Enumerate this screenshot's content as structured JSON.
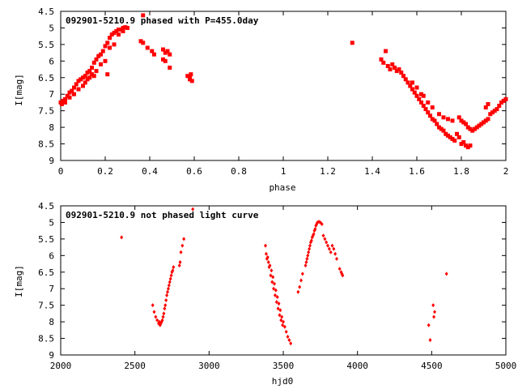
{
  "chart_data": [
    {
      "type": "scatter",
      "title": "092901-5210.9 phased with P=455.0day",
      "xlabel": "phase",
      "ylabel": "I[mag]",
      "xlim": [
        0,
        2
      ],
      "ylim": [
        9,
        4.5
      ],
      "y_inverted": true,
      "xticks": [
        "0",
        "0.2",
        "0.4",
        "0.6",
        "0.8",
        "1",
        "1.2",
        "1.4",
        "1.6",
        "1.8",
        "2"
      ],
      "yticks": [
        "4.5",
        "5",
        "5.5",
        "6",
        "6.5",
        "7",
        "7.5",
        "8",
        "8.5",
        "9"
      ],
      "marker_color": "#ff0000",
      "marker": "filled-square",
      "series": [
        {
          "points": [
            [
              0.0,
              7.25
            ],
            [
              0.01,
              7.2
            ],
            [
              0.02,
              7.15
            ],
            [
              0.03,
              7.05
            ],
            [
              0.04,
              6.95
            ],
            [
              0.05,
              6.9
            ],
            [
              0.06,
              6.8
            ],
            [
              0.07,
              6.7
            ],
            [
              0.08,
              6.6
            ],
            [
              0.09,
              6.55
            ],
            [
              0.1,
              6.5
            ],
            [
              0.11,
              6.45
            ],
            [
              0.12,
              6.35
            ],
            [
              0.13,
              6.3
            ],
            [
              0.14,
              6.2
            ],
            [
              0.15,
              6.05
            ],
            [
              0.16,
              5.95
            ],
            [
              0.17,
              5.85
            ],
            [
              0.18,
              5.8
            ],
            [
              0.19,
              5.7
            ],
            [
              0.2,
              5.55
            ],
            [
              0.21,
              5.45
            ],
            [
              0.22,
              5.3
            ],
            [
              0.23,
              5.2
            ],
            [
              0.24,
              5.15
            ],
            [
              0.25,
              5.1
            ],
            [
              0.26,
              5.05
            ],
            [
              0.27,
              5.05
            ],
            [
              0.28,
              5.0
            ],
            [
              0.29,
              4.98
            ],
            [
              0.3,
              5.0
            ],
            [
              0.005,
              7.3
            ],
            [
              0.02,
              7.25
            ],
            [
              0.04,
              7.1
            ],
            [
              0.06,
              7.0
            ],
            [
              0.08,
              6.85
            ],
            [
              0.1,
              6.75
            ],
            [
              0.12,
              6.55
            ],
            [
              0.14,
              6.4
            ],
            [
              0.16,
              6.3
            ],
            [
              0.18,
              6.1
            ],
            [
              0.2,
              6.0
            ],
            [
              0.22,
              5.6
            ],
            [
              0.24,
              5.5
            ],
            [
              0.26,
              5.2
            ],
            [
              0.28,
              5.1
            ],
            [
              0.11,
              6.65
            ],
            [
              0.13,
              6.5
            ],
            [
              0.15,
              6.45
            ],
            [
              0.21,
              6.4
            ],
            [
              0.37,
              4.62
            ],
            [
              0.36,
              5.4
            ],
            [
              0.37,
              5.45
            ],
            [
              0.39,
              5.6
            ],
            [
              0.41,
              5.7
            ],
            [
              0.42,
              5.8
            ],
            [
              0.46,
              5.95
            ],
            [
              0.47,
              6.0
            ],
            [
              0.46,
              5.65
            ],
            [
              0.47,
              5.75
            ],
            [
              0.48,
              5.7
            ],
            [
              0.49,
              5.8
            ],
            [
              0.49,
              6.2
            ],
            [
              0.57,
              6.45
            ],
            [
              0.58,
              6.5
            ],
            [
              0.58,
              6.55
            ],
            [
              0.59,
              6.6
            ],
            [
              0.585,
              6.4
            ],
            [
              1.31,
              5.45
            ],
            [
              1.44,
              5.95
            ],
            [
              1.45,
              6.05
            ],
            [
              1.46,
              5.7
            ],
            [
              1.47,
              6.15
            ],
            [
              1.48,
              6.25
            ],
            [
              1.49,
              6.1
            ],
            [
              1.5,
              6.2
            ],
            [
              1.51,
              6.3
            ],
            [
              1.52,
              6.25
            ],
            [
              1.53,
              6.35
            ],
            [
              1.54,
              6.45
            ],
            [
              1.55,
              6.55
            ],
            [
              1.56,
              6.65
            ],
            [
              1.57,
              6.75
            ],
            [
              1.58,
              6.85
            ],
            [
              1.59,
              6.95
            ],
            [
              1.6,
              7.05
            ],
            [
              1.61,
              7.15
            ],
            [
              1.62,
              7.25
            ],
            [
              1.63,
              7.35
            ],
            [
              1.64,
              7.45
            ],
            [
              1.65,
              7.55
            ],
            [
              1.66,
              7.65
            ],
            [
              1.67,
              7.75
            ],
            [
              1.68,
              7.8
            ],
            [
              1.69,
              7.9
            ],
            [
              1.7,
              8.0
            ],
            [
              1.71,
              8.05
            ],
            [
              1.72,
              8.1
            ],
            [
              1.73,
              8.2
            ],
            [
              1.74,
              8.25
            ],
            [
              1.75,
              8.3
            ],
            [
              1.76,
              8.35
            ],
            [
              1.77,
              8.4
            ],
            [
              1.78,
              8.2
            ],
            [
              1.79,
              8.3
            ],
            [
              1.8,
              8.5
            ],
            [
              1.81,
              8.45
            ],
            [
              1.82,
              8.55
            ],
            [
              1.83,
              8.6
            ],
            [
              1.84,
              8.55
            ],
            [
              1.79,
              7.7
            ],
            [
              1.8,
              7.8
            ],
            [
              1.81,
              7.85
            ],
            [
              1.82,
              7.9
            ],
            [
              1.83,
              8.0
            ],
            [
              1.84,
              8.05
            ],
            [
              1.85,
              8.1
            ],
            [
              1.86,
              8.05
            ],
            [
              1.87,
              8.0
            ],
            [
              1.88,
              7.95
            ],
            [
              1.89,
              7.9
            ],
            [
              1.9,
              7.85
            ],
            [
              1.91,
              7.8
            ],
            [
              1.92,
              7.75
            ],
            [
              1.93,
              7.6
            ],
            [
              1.94,
              7.55
            ],
            [
              1.95,
              7.5
            ],
            [
              1.96,
              7.45
            ],
            [
              1.97,
              7.35
            ],
            [
              1.98,
              7.25
            ],
            [
              1.99,
              7.2
            ],
            [
              2.0,
              7.15
            ],
            [
              1.91,
              7.4
            ],
            [
              1.92,
              7.3
            ],
            [
              1.7,
              7.6
            ],
            [
              1.72,
              7.7
            ],
            [
              1.74,
              7.75
            ],
            [
              1.76,
              7.8
            ],
            [
              1.63,
              7.05
            ],
            [
              1.65,
              7.25
            ],
            [
              1.67,
              7.4
            ],
            [
              1.58,
              6.65
            ],
            [
              1.6,
              6.8
            ],
            [
              1.62,
              7.0
            ]
          ]
        }
      ]
    },
    {
      "type": "scatter",
      "title": "092901-5210.9 not phased light curve",
      "xlabel": "hjd0",
      "ylabel": "I[mag]",
      "xlim": [
        2000,
        5000
      ],
      "ylim": [
        9,
        4.5
      ],
      "y_inverted": true,
      "xticks": [
        "2000",
        "2500",
        "3000",
        "3500",
        "4000",
        "4500",
        "5000"
      ],
      "yticks": [
        "4.5",
        "5",
        "5.5",
        "6",
        "6.5",
        "7",
        "7.5",
        "8",
        "8.5",
        "9"
      ],
      "marker_color": "#ff0000",
      "marker": "filled-diamond",
      "series": [
        {
          "points": [
            [
              2410,
              5.45
            ],
            [
              2890,
              4.6
            ],
            [
              2620,
              7.5
            ],
            [
              2630,
              7.7
            ],
            [
              2640,
              7.85
            ],
            [
              2650,
              7.95
            ],
            [
              2660,
              8.05
            ],
            [
              2670,
              8.1
            ],
            [
              2680,
              8.0
            ],
            [
              2690,
              7.85
            ],
            [
              2700,
              7.6
            ],
            [
              2710,
              7.35
            ],
            [
              2720,
              7.1
            ],
            [
              2730,
              6.9
            ],
            [
              2740,
              6.7
            ],
            [
              2750,
              6.5
            ],
            [
              2760,
              6.35
            ],
            [
              2665,
              8.0
            ],
            [
              2675,
              8.05
            ],
            [
              2685,
              7.95
            ],
            [
              2695,
              7.75
            ],
            [
              2705,
              7.5
            ],
            [
              2715,
              7.2
            ],
            [
              2725,
              7.0
            ],
            [
              2735,
              6.8
            ],
            [
              2745,
              6.6
            ],
            [
              2755,
              6.45
            ],
            [
              2800,
              6.3
            ],
            [
              2810,
              5.9
            ],
            [
              2820,
              5.7
            ],
            [
              2830,
              5.5
            ],
            [
              2805,
              6.2
            ],
            [
              3380,
              5.7
            ],
            [
              3385,
              5.95
            ],
            [
              3390,
              6.1
            ],
            [
              3400,
              6.2
            ],
            [
              3410,
              6.3
            ],
            [
              3420,
              6.45
            ],
            [
              3430,
              6.65
            ],
            [
              3440,
              6.85
            ],
            [
              3450,
              7.05
            ],
            [
              3460,
              7.25
            ],
            [
              3470,
              7.45
            ],
            [
              3480,
              7.65
            ],
            [
              3490,
              7.85
            ],
            [
              3500,
              8.0
            ],
            [
              3510,
              8.15
            ],
            [
              3520,
              8.3
            ],
            [
              3530,
              8.45
            ],
            [
              3540,
              8.55
            ],
            [
              3550,
              8.65
            ],
            [
              3395,
              6.05
            ],
            [
              3405,
              6.35
            ],
            [
              3415,
              6.6
            ],
            [
              3425,
              6.8
            ],
            [
              3435,
              7.0
            ],
            [
              3445,
              7.2
            ],
            [
              3455,
              7.4
            ],
            [
              3465,
              7.6
            ],
            [
              3475,
              7.8
            ],
            [
              3485,
              7.95
            ],
            [
              3495,
              8.1
            ],
            [
              3600,
              7.1
            ],
            [
              3610,
              6.95
            ],
            [
              3620,
              6.75
            ],
            [
              3630,
              6.55
            ],
            [
              3650,
              6.3
            ],
            [
              3660,
              6.1
            ],
            [
              3670,
              5.9
            ],
            [
              3680,
              5.7
            ],
            [
              3690,
              5.55
            ],
            [
              3700,
              5.4
            ],
            [
              3710,
              5.25
            ],
            [
              3720,
              5.1
            ],
            [
              3730,
              5.0
            ],
            [
              3740,
              4.98
            ],
            [
              3750,
              5.0
            ],
            [
              3760,
              5.05
            ],
            [
              3655,
              6.2
            ],
            [
              3665,
              6.0
            ],
            [
              3675,
              5.8
            ],
            [
              3685,
              5.6
            ],
            [
              3695,
              5.45
            ],
            [
              3705,
              5.35
            ],
            [
              3715,
              5.2
            ],
            [
              3725,
              5.05
            ],
            [
              3770,
              5.4
            ],
            [
              3780,
              5.5
            ],
            [
              3790,
              5.6
            ],
            [
              3800,
              5.7
            ],
            [
              3810,
              5.8
            ],
            [
              3820,
              5.9
            ],
            [
              3830,
              5.7
            ],
            [
              3840,
              5.8
            ],
            [
              3850,
              5.95
            ],
            [
              3860,
              6.1
            ],
            [
              3880,
              6.4
            ],
            [
              3890,
              6.5
            ],
            [
              3900,
              6.6
            ],
            [
              3895,
              6.55
            ],
            [
              4480,
              8.1
            ],
            [
              4490,
              8.55
            ],
            [
              4510,
              7.5
            ],
            [
              4520,
              7.7
            ],
            [
              4600,
              6.55
            ],
            [
              4515,
              7.85
            ]
          ]
        }
      ]
    }
  ]
}
